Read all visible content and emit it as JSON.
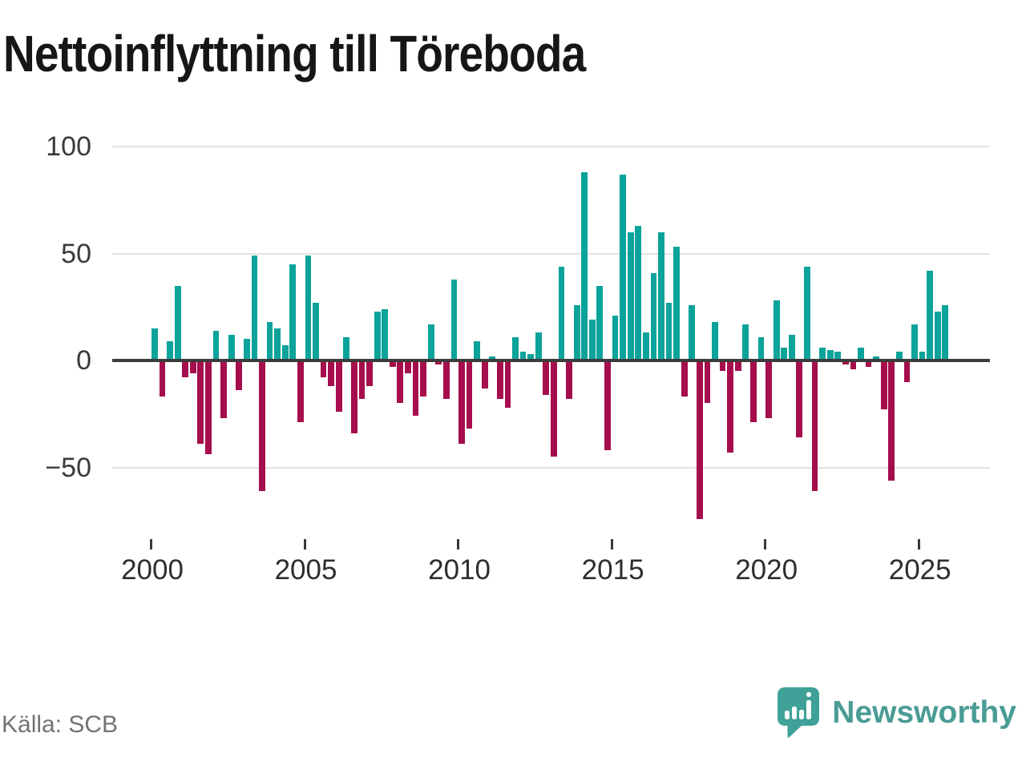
{
  "page": {
    "title": "Nettoinflyttning till Töreboda"
  },
  "footer": {
    "source": "Källa: SCB",
    "brand": "Newsworthy"
  },
  "chart_data": {
    "type": "bar",
    "title": "Nettoinflyttning till Töreboda",
    "frequency": "quarterly",
    "x_start_year": 2000,
    "x_start_quarter": 1,
    "x_end_year": 2025,
    "x_end_quarter": 4,
    "values": [
      15,
      -17,
      9,
      35,
      -8,
      -6,
      -39,
      -44,
      14,
      -27,
      12,
      -14,
      10,
      49,
      -61,
      18,
      15,
      7,
      45,
      -29,
      49,
      27,
      -8,
      -12,
      -24,
      11,
      -34,
      -18,
      -12,
      23,
      24,
      -3,
      -20,
      -6,
      -26,
      -17,
      17,
      -2,
      -18,
      38,
      -39,
      -32,
      9,
      -13,
      2,
      -18,
      -22,
      11,
      4,
      3,
      13,
      -16,
      -45,
      44,
      -18,
      26,
      88,
      19,
      35,
      -42,
      21,
      87,
      60,
      63,
      13,
      41,
      60,
      27,
      53,
      -17,
      26,
      -74,
      -20,
      18,
      -5,
      -43,
      -5,
      17,
      -29,
      11,
      -27,
      28,
      6,
      12,
      -36,
      44,
      -61,
      6,
      5,
      4,
      -2,
      -4,
      6,
      -3,
      2,
      -23,
      -56,
      4,
      -10,
      17,
      4,
      42,
      23,
      26
    ],
    "positive_color": "#0ba39a",
    "negative_color": "#a60d4c",
    "x_ticks": [
      "2000",
      "2005",
      "2010",
      "2015",
      "2020",
      "2025"
    ],
    "y_ticks": [
      "100",
      "50",
      "0",
      "−50"
    ],
    "y_tick_values": [
      100,
      50,
      0,
      -50
    ],
    "ylim": [
      -80,
      100
    ],
    "grid": true,
    "zero_line": true,
    "legend": "none"
  }
}
